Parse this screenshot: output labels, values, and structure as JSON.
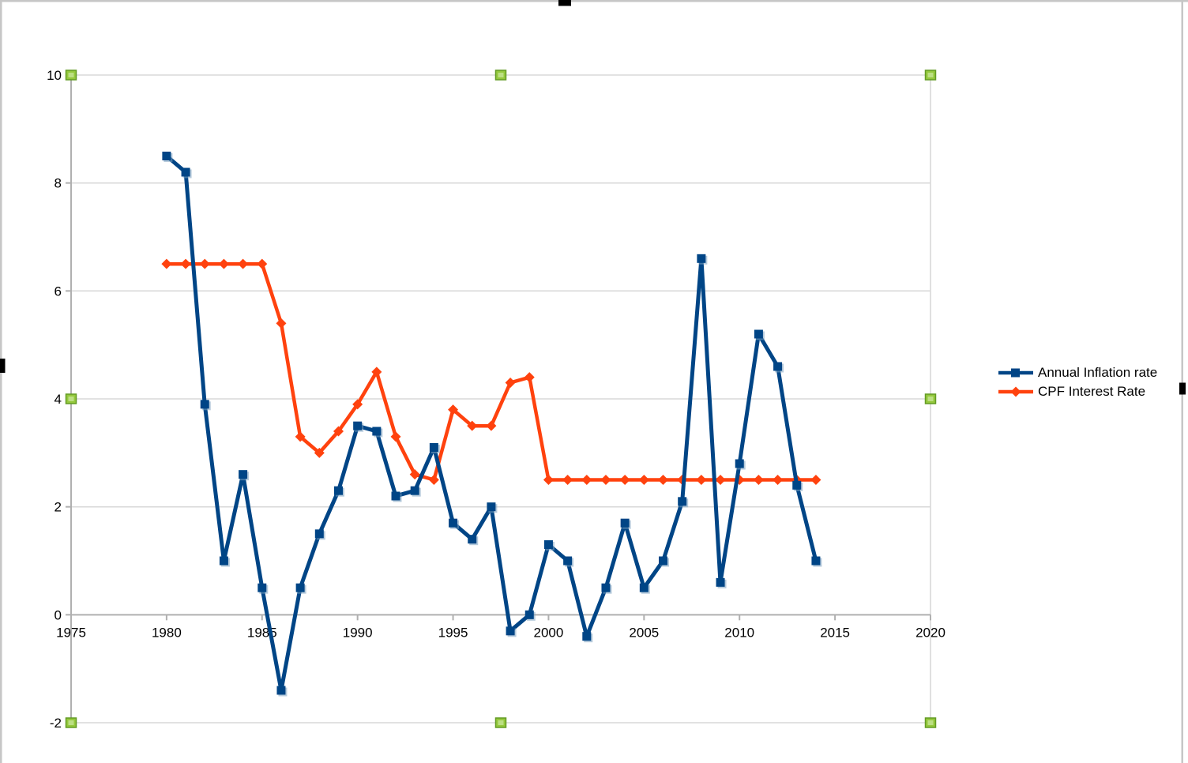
{
  "window": {
    "background": "#ffffff",
    "frame_color": "#c6c6c6",
    "anchor_color": "#000000"
  },
  "selection_handles": {
    "fill": "#94c83d",
    "highlight": "#bcdf83",
    "border": "#639b25",
    "positions": [
      "nw",
      "n",
      "ne",
      "w",
      "e",
      "sw",
      "s",
      "se"
    ]
  },
  "legend": {
    "items": [
      {
        "label": "Annual Inflation rate",
        "color": "#004586",
        "marker": "square"
      },
      {
        "label": "CPF Interest Rate",
        "color": "#ff420e",
        "marker": "diamond"
      }
    ]
  },
  "chart_data": {
    "type": "line",
    "title": "",
    "xlabel": "",
    "ylabel": "",
    "x": [
      1980,
      1981,
      1982,
      1983,
      1984,
      1985,
      1986,
      1987,
      1988,
      1989,
      1990,
      1991,
      1992,
      1993,
      1994,
      1995,
      1996,
      1997,
      1998,
      1999,
      2000,
      2001,
      2002,
      2003,
      2004,
      2005,
      2006,
      2007,
      2008,
      2009,
      2010,
      2011,
      2012,
      2013,
      2014
    ],
    "series": [
      {
        "name": "Annual Inflation rate",
        "color": "#004586",
        "marker": "square",
        "values": [
          8.5,
          8.2,
          3.9,
          1.0,
          2.6,
          0.5,
          -1.4,
          0.5,
          1.5,
          2.3,
          3.5,
          3.4,
          2.2,
          2.3,
          3.1,
          1.7,
          1.4,
          2.0,
          -0.3,
          0.0,
          1.3,
          1.0,
          -0.4,
          0.5,
          1.7,
          0.5,
          1.0,
          2.1,
          6.6,
          0.6,
          2.8,
          5.2,
          4.6,
          2.4,
          1.0
        ]
      },
      {
        "name": "CPF Interest Rate",
        "color": "#ff420e",
        "marker": "diamond",
        "values": [
          6.5,
          6.5,
          6.5,
          6.5,
          6.5,
          6.5,
          5.4,
          3.3,
          3.0,
          3.4,
          3.9,
          4.5,
          3.3,
          2.6,
          2.5,
          3.8,
          3.5,
          3.5,
          4.3,
          4.4,
          2.5,
          2.5,
          2.5,
          2.5,
          2.5,
          2.5,
          2.5,
          2.5,
          2.5,
          2.5,
          2.5,
          2.5,
          2.5,
          2.5,
          2.5
        ]
      }
    ],
    "xlim": [
      1975,
      2020
    ],
    "ylim": [
      -2,
      10
    ],
    "x_ticks": [
      1975,
      1980,
      1985,
      1990,
      1995,
      2000,
      2005,
      2010,
      2015,
      2020
    ],
    "x_tick_labels": [
      "1975",
      "1980",
      "1985",
      "1990",
      "1995",
      "2000",
      "2005",
      "2010",
      "2015",
      "2020"
    ],
    "y_ticks": [
      10,
      8,
      6,
      4,
      2,
      0,
      -2
    ],
    "y_tick_labels": [
      "10",
      "8",
      "6",
      "4",
      "2",
      "0",
      "-2"
    ],
    "grid": "horizontal-only",
    "legend_position": "right",
    "colors": {
      "axis": "#b0b0b0",
      "gridline": "#d9d9d9",
      "tick_label": "#000000"
    }
  }
}
